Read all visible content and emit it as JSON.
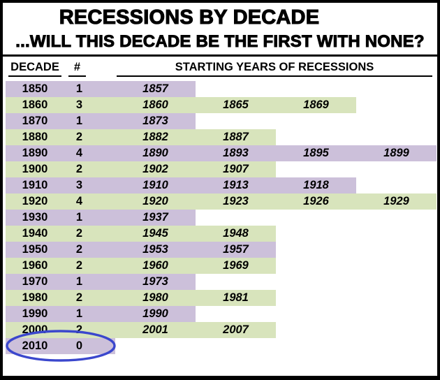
{
  "chart_data": {
    "type": "table",
    "title": "RECESSIONS BY DECADE",
    "subtitle": "...WILL THIS DECADE BE THE FIRST WITH NONE?",
    "column_headers": {
      "decade": "DECADE",
      "count": "#",
      "years": "STARTING YEARS OF RECESSIONS"
    },
    "rows": [
      {
        "decade": "1850",
        "count": 1,
        "years": [
          "1857"
        ]
      },
      {
        "decade": "1860",
        "count": 3,
        "years": [
          "1860",
          "1865",
          "1869"
        ]
      },
      {
        "decade": "1870",
        "count": 1,
        "years": [
          "1873"
        ]
      },
      {
        "decade": "1880",
        "count": 2,
        "years": [
          "1882",
          "1887"
        ]
      },
      {
        "decade": "1890",
        "count": 4,
        "years": [
          "1890",
          "1893",
          "1895",
          "1899"
        ]
      },
      {
        "decade": "1900",
        "count": 2,
        "years": [
          "1902",
          "1907"
        ]
      },
      {
        "decade": "1910",
        "count": 3,
        "years": [
          "1910",
          "1913",
          "1918"
        ]
      },
      {
        "decade": "1920",
        "count": 4,
        "years": [
          "1920",
          "1923",
          "1926",
          "1929"
        ]
      },
      {
        "decade": "1930",
        "count": 1,
        "years": [
          "1937"
        ]
      },
      {
        "decade": "1940",
        "count": 2,
        "years": [
          "1945",
          "1948"
        ]
      },
      {
        "decade": "1950",
        "count": 2,
        "years": [
          "1953",
          "1957"
        ]
      },
      {
        "decade": "1960",
        "count": 2,
        "years": [
          "1960",
          "1969"
        ]
      },
      {
        "decade": "1970",
        "count": 1,
        "years": [
          "1973"
        ]
      },
      {
        "decade": "1980",
        "count": 2,
        "years": [
          "1980",
          "1981"
        ]
      },
      {
        "decade": "1990",
        "count": 1,
        "years": [
          "1990"
        ]
      },
      {
        "decade": "2000",
        "count": 2,
        "years": [
          "2001",
          "2007"
        ]
      },
      {
        "decade": "2010",
        "count": 0,
        "years": []
      }
    ],
    "layout": {
      "max_year_columns": 4,
      "alternating_row_colors": [
        "#CCC0DA",
        "#D8E4BC"
      ],
      "row_fill_length_encodes_count": true,
      "grid": false,
      "annotation": {
        "shape": "ellipse",
        "color": "#3B47CD",
        "around_row": "2010"
      }
    }
  },
  "colors": {
    "row_purple": "#CCC0DA",
    "row_green": "#D8E4BC",
    "ellipse_blue": "#3B47CD",
    "border_black": "#000000"
  }
}
